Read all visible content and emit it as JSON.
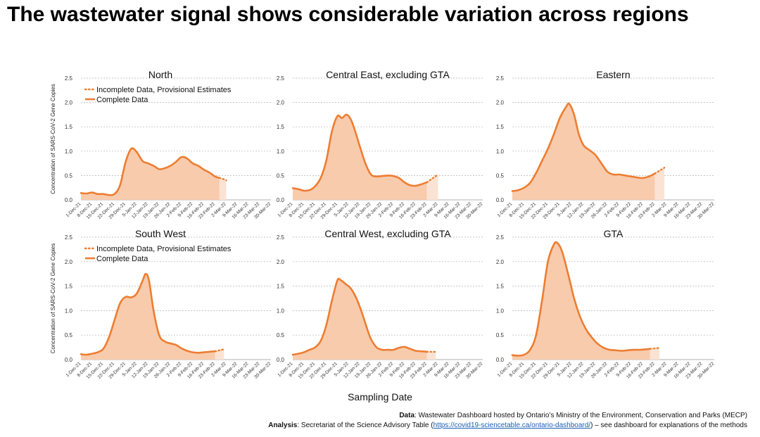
{
  "title": "The wastewater signal shows considerable variation across regions",
  "x_axis_title": "Sampling Date",
  "y_axis_title": "Concentration of SARS-CoV-2 Gene Copies",
  "legend": {
    "provisional": "Incomplete Data, Provisional Estimates",
    "complete": "Complete Data"
  },
  "colors": {
    "line": "#ed7d31",
    "fill": "#f8cbad",
    "fill_provisional": "#fbe3d3",
    "grid": "#b0b0b0"
  },
  "source": {
    "data_label": "Data",
    "data_text": ": Wastewater Dashboard hosted by Ontario’s Ministry of the Environment, Conservation and Parks (MECP)",
    "analysis_label": "Analysis",
    "analysis_text_before": ": Secretariat of the Science Advisory Table (",
    "analysis_link": "https://covid19-sciencetable.ca/ontario-dashboard/",
    "analysis_text_after": ") – see dashboard for explanations of the methods"
  },
  "chart_data": [
    {
      "type": "area",
      "title": "North",
      "legend": true,
      "show_ylabel": true,
      "x": [
        "1-Dec-21",
        "8-Dec-21",
        "15-Dec-21",
        "22-Dec-21",
        "29-Dec-21",
        "5-Jan-22",
        "12-Jan-22",
        "19-Jan-22",
        "26-Jan-22",
        "2-Feb-22",
        "9-Feb-22",
        "16-Feb-22",
        "23-Feb-22",
        "2-Mar-22",
        "9-Mar-22",
        "16-Mar-22",
        "23-Mar-22",
        "30-Mar-22"
      ],
      "ylim": [
        0,
        2.5
      ],
      "yticks": [
        0.0,
        0.5,
        1.0,
        1.5,
        2.0,
        2.5
      ],
      "series": [
        {
          "status": "complete",
          "points": [
            [
              0,
              0.14
            ],
            [
              0.5,
              0.13
            ],
            [
              1,
              0.15
            ],
            [
              1.5,
              0.12
            ],
            [
              2,
              0.12
            ],
            [
              2.5,
              0.1
            ],
            [
              3,
              0.12
            ],
            [
              3.5,
              0.3
            ],
            [
              4,
              0.78
            ],
            [
              4.5,
              1.05
            ],
            [
              5,
              0.98
            ],
            [
              5.5,
              0.8
            ],
            [
              6,
              0.75
            ],
            [
              6.5,
              0.7
            ],
            [
              7,
              0.63
            ],
            [
              7.5,
              0.65
            ],
            [
              8,
              0.7
            ],
            [
              8.5,
              0.78
            ],
            [
              9,
              0.88
            ],
            [
              9.5,
              0.85
            ],
            [
              10,
              0.75
            ],
            [
              10.5,
              0.7
            ],
            [
              11,
              0.62
            ],
            [
              11.5,
              0.56
            ],
            [
              12,
              0.48
            ],
            [
              12.4,
              0.45
            ]
          ]
        },
        {
          "status": "provisional",
          "points": [
            [
              12.4,
              0.45
            ],
            [
              12.7,
              0.43
            ],
            [
              13,
              0.4
            ]
          ]
        }
      ]
    },
    {
      "type": "area",
      "title": "Central East, excluding GTA",
      "legend": false,
      "show_ylabel": false,
      "x": [
        "1-Dec-21",
        "8-Dec-21",
        "15-Dec-21",
        "22-Dec-21",
        "29-Dec-21",
        "5-Jan-22",
        "12-Jan-22",
        "19-Jan-22",
        "26-Jan-22",
        "2-Feb-22",
        "9-Feb-22",
        "16-Feb-22",
        "23-Feb-22",
        "2-Mar-22",
        "9-Mar-22",
        "16-Mar-22",
        "23-Mar-22",
        "30-Mar-22"
      ],
      "ylim": [
        0,
        2.5
      ],
      "yticks": [
        0.0,
        0.5,
        1.0,
        1.5,
        2.0,
        2.5
      ],
      "series": [
        {
          "status": "complete",
          "points": [
            [
              0,
              0.24
            ],
            [
              0.5,
              0.22
            ],
            [
              1,
              0.19
            ],
            [
              1.5,
              0.2
            ],
            [
              2,
              0.28
            ],
            [
              2.5,
              0.45
            ],
            [
              3,
              0.8
            ],
            [
              3.5,
              1.4
            ],
            [
              4,
              1.72
            ],
            [
              4.4,
              1.68
            ],
            [
              4.8,
              1.75
            ],
            [
              5.2,
              1.65
            ],
            [
              5.6,
              1.4
            ],
            [
              6,
              1.1
            ],
            [
              6.5,
              0.75
            ],
            [
              7,
              0.52
            ],
            [
              7.5,
              0.48
            ],
            [
              8,
              0.49
            ],
            [
              8.5,
              0.5
            ],
            [
              9,
              0.49
            ],
            [
              9.5,
              0.45
            ],
            [
              10,
              0.36
            ],
            [
              10.5,
              0.3
            ],
            [
              11,
              0.29
            ],
            [
              11.5,
              0.32
            ],
            [
              12,
              0.36
            ]
          ]
        },
        {
          "status": "provisional",
          "points": [
            [
              12,
              0.36
            ],
            [
              12.5,
              0.44
            ],
            [
              13,
              0.52
            ]
          ]
        }
      ]
    },
    {
      "type": "area",
      "title": "Eastern",
      "legend": false,
      "show_ylabel": false,
      "x": [
        "1-Dec-21",
        "8-Dec-21",
        "15-Dec-21",
        "22-Dec-21",
        "29-Dec-21",
        "5-Jan-22",
        "12-Jan-22",
        "19-Jan-22",
        "26-Jan-22",
        "2-Feb-22",
        "9-Feb-22",
        "16-Feb-22",
        "23-Feb-22",
        "2-Mar-22",
        "9-Mar-22",
        "16-Mar-22",
        "23-Mar-22",
        "30-Mar-22"
      ],
      "ylim": [
        0,
        2.5
      ],
      "yticks": [
        0.0,
        0.5,
        1.0,
        1.5,
        2.0,
        2.5
      ],
      "series": [
        {
          "status": "complete",
          "points": [
            [
              0,
              0.18
            ],
            [
              0.5,
              0.2
            ],
            [
              1,
              0.25
            ],
            [
              1.5,
              0.35
            ],
            [
              2,
              0.55
            ],
            [
              2.5,
              0.8
            ],
            [
              3,
              1.05
            ],
            [
              3.5,
              1.35
            ],
            [
              4,
              1.68
            ],
            [
              4.5,
              1.9
            ],
            [
              4.8,
              1.97
            ],
            [
              5.2,
              1.75
            ],
            [
              5.6,
              1.35
            ],
            [
              6,
              1.12
            ],
            [
              6.5,
              1.02
            ],
            [
              7,
              0.92
            ],
            [
              7.5,
              0.75
            ],
            [
              8,
              0.58
            ],
            [
              8.5,
              0.52
            ],
            [
              9,
              0.52
            ],
            [
              9.5,
              0.5
            ],
            [
              10,
              0.48
            ],
            [
              10.5,
              0.46
            ],
            [
              11,
              0.45
            ],
            [
              11.5,
              0.48
            ],
            [
              12,
              0.54
            ]
          ]
        },
        {
          "status": "provisional",
          "points": [
            [
              12,
              0.54
            ],
            [
              12.4,
              0.6
            ],
            [
              12.8,
              0.66
            ]
          ]
        }
      ]
    },
    {
      "type": "area",
      "title": "South West",
      "legend": true,
      "show_ylabel": true,
      "x": [
        "1-Dec-21",
        "8-Dec-21",
        "15-Dec-21",
        "22-Dec-21",
        "29-Dec-21",
        "5-Jan-22",
        "12-Jan-22",
        "19-Jan-22",
        "26-Jan-22",
        "2-Feb-22",
        "9-Feb-22",
        "16-Feb-22",
        "23-Feb-22",
        "2-Mar-22",
        "9-Mar-22",
        "16-Mar-22",
        "23-Mar-22",
        "30-Mar-22"
      ],
      "ylim": [
        0,
        2.5
      ],
      "yticks": [
        0.0,
        0.5,
        1.0,
        1.5,
        2.0,
        2.5
      ],
      "series": [
        {
          "status": "complete",
          "points": [
            [
              0,
              0.11
            ],
            [
              0.5,
              0.1
            ],
            [
              1,
              0.12
            ],
            [
              1.5,
              0.15
            ],
            [
              2,
              0.22
            ],
            [
              2.5,
              0.45
            ],
            [
              3,
              0.8
            ],
            [
              3.5,
              1.15
            ],
            [
              4,
              1.28
            ],
            [
              4.5,
              1.27
            ],
            [
              5,
              1.35
            ],
            [
              5.5,
              1.6
            ],
            [
              5.8,
              1.75
            ],
            [
              6.1,
              1.6
            ],
            [
              6.5,
              1.0
            ],
            [
              7,
              0.5
            ],
            [
              7.5,
              0.37
            ],
            [
              8,
              0.33
            ],
            [
              8.5,
              0.3
            ],
            [
              9,
              0.23
            ],
            [
              9.5,
              0.18
            ],
            [
              10,
              0.15
            ],
            [
              10.5,
              0.14
            ],
            [
              11,
              0.15
            ],
            [
              11.5,
              0.16
            ],
            [
              12,
              0.17
            ]
          ]
        },
        {
          "status": "provisional",
          "points": [
            [
              12,
              0.17
            ],
            [
              12.4,
              0.19
            ],
            [
              12.8,
              0.21
            ]
          ]
        }
      ]
    },
    {
      "type": "area",
      "title": "Central West, excluding GTA",
      "legend": false,
      "show_ylabel": false,
      "x": [
        "1-Dec-21",
        "8-Dec-21",
        "15-Dec-21",
        "22-Dec-21",
        "29-Dec-21",
        "5-Jan-22",
        "12-Jan-22",
        "19-Jan-22",
        "26-Jan-22",
        "2-Feb-22",
        "9-Feb-22",
        "16-Feb-22",
        "23-Feb-22",
        "2-Mar-22",
        "9-Mar-22",
        "16-Mar-22",
        "23-Mar-22",
        "30-Mar-22"
      ],
      "ylim": [
        0,
        2.5
      ],
      "yticks": [
        0.0,
        0.5,
        1.0,
        1.5,
        2.0,
        2.5
      ],
      "series": [
        {
          "status": "complete",
          "points": [
            [
              0,
              0.1
            ],
            [
              0.5,
              0.12
            ],
            [
              1,
              0.15
            ],
            [
              1.5,
              0.2
            ],
            [
              2,
              0.25
            ],
            [
              2.5,
              0.38
            ],
            [
              3,
              0.7
            ],
            [
              3.5,
              1.2
            ],
            [
              4,
              1.62
            ],
            [
              4.3,
              1.62
            ],
            [
              4.7,
              1.55
            ],
            [
              5.2,
              1.45
            ],
            [
              5.7,
              1.25
            ],
            [
              6.2,
              0.95
            ],
            [
              6.7,
              0.6
            ],
            [
              7,
              0.42
            ],
            [
              7.5,
              0.25
            ],
            [
              8,
              0.2
            ],
            [
              8.5,
              0.2
            ],
            [
              9,
              0.2
            ],
            [
              9.5,
              0.24
            ],
            [
              10,
              0.26
            ],
            [
              10.5,
              0.22
            ],
            [
              11,
              0.18
            ],
            [
              11.5,
              0.17
            ],
            [
              12,
              0.16
            ]
          ]
        },
        {
          "status": "provisional",
          "points": [
            [
              12,
              0.16
            ],
            [
              12.4,
              0.16
            ],
            [
              12.8,
              0.16
            ]
          ]
        }
      ]
    },
    {
      "type": "area",
      "title": "GTA",
      "legend": false,
      "show_ylabel": false,
      "x": [
        "1-Dec-21",
        "8-Dec-21",
        "15-Dec-21",
        "22-Dec-21",
        "29-Dec-21",
        "5-Jan-22",
        "12-Jan-22",
        "19-Jan-22",
        "26-Jan-22",
        "2-Feb-22",
        "9-Feb-22",
        "16-Feb-22",
        "23-Feb-22",
        "2-Mar-22",
        "9-Mar-22",
        "16-Mar-22",
        "23-Mar-22",
        "30-Mar-22"
      ],
      "ylim": [
        0,
        2.5
      ],
      "yticks": [
        0.0,
        0.5,
        1.0,
        1.5,
        2.0,
        2.5
      ],
      "series": [
        {
          "status": "complete",
          "points": [
            [
              0,
              0.09
            ],
            [
              0.5,
              0.08
            ],
            [
              1,
              0.1
            ],
            [
              1.5,
              0.2
            ],
            [
              2,
              0.5
            ],
            [
              2.5,
              1.2
            ],
            [
              3,
              2.0
            ],
            [
              3.5,
              2.35
            ],
            [
              3.8,
              2.38
            ],
            [
              4.2,
              2.2
            ],
            [
              4.7,
              1.75
            ],
            [
              5.2,
              1.25
            ],
            [
              5.7,
              0.88
            ],
            [
              6.2,
              0.62
            ],
            [
              6.7,
              0.45
            ],
            [
              7.2,
              0.32
            ],
            [
              7.7,
              0.24
            ],
            [
              8.2,
              0.2
            ],
            [
              8.7,
              0.19
            ],
            [
              9.2,
              0.18
            ],
            [
              9.7,
              0.19
            ],
            [
              10.2,
              0.2
            ],
            [
              10.7,
              0.2
            ],
            [
              11.2,
              0.21
            ],
            [
              11.6,
              0.22
            ]
          ]
        },
        {
          "status": "provisional",
          "points": [
            [
              11.6,
              0.22
            ],
            [
              12.0,
              0.23
            ],
            [
              12.4,
              0.24
            ]
          ]
        }
      ]
    }
  ]
}
